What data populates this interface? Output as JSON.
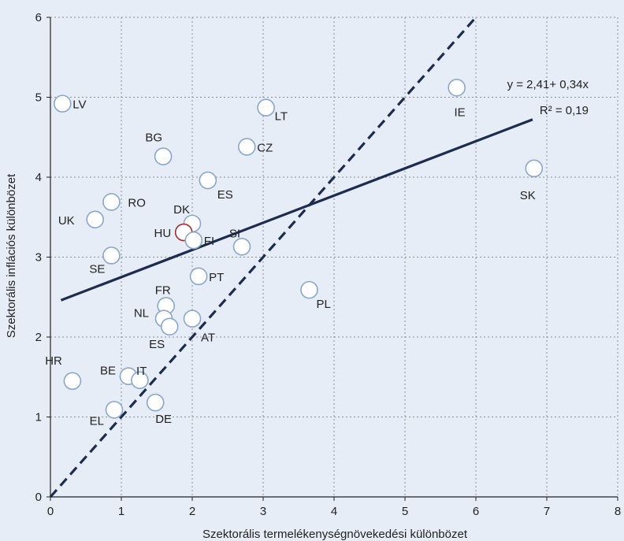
{
  "chart_data": {
    "type": "scatter",
    "xlabel": "Szektorális termelékenységnövekedési különbözet",
    "ylabel": "Szektorális inflációs különbözet",
    "xlim": [
      0,
      8
    ],
    "ylim": [
      0,
      6
    ],
    "xticks": [
      "0",
      "1",
      "2",
      "3",
      "4",
      "5",
      "6",
      "7",
      "8"
    ],
    "yticks": [
      "0",
      "1",
      "2",
      "3",
      "4",
      "5",
      "6"
    ],
    "grid": true,
    "points": [
      {
        "label": "LV",
        "x": 0.17,
        "y": 4.92,
        "highlight": false
      },
      {
        "label": "LT",
        "x": 3.04,
        "y": 4.87,
        "highlight": false
      },
      {
        "label": "IE",
        "x": 5.73,
        "y": 5.12,
        "highlight": false
      },
      {
        "label": "BG",
        "x": 1.59,
        "y": 4.26,
        "highlight": false
      },
      {
        "label": "CZ",
        "x": 2.77,
        "y": 4.38,
        "highlight": false
      },
      {
        "label": "ES",
        "x": 2.22,
        "y": 3.96,
        "highlight": false
      },
      {
        "label": "SK",
        "x": 6.82,
        "y": 4.11,
        "highlight": false
      },
      {
        "label": "RO",
        "x": 0.86,
        "y": 3.69,
        "highlight": false
      },
      {
        "label": "UK",
        "x": 0.63,
        "y": 3.47,
        "highlight": false
      },
      {
        "label": "DK",
        "x": 2.0,
        "y": 3.42,
        "highlight": false
      },
      {
        "label": "HU",
        "x": 1.88,
        "y": 3.31,
        "highlight": true
      },
      {
        "label": "FI",
        "x": 2.02,
        "y": 3.21,
        "highlight": false
      },
      {
        "label": "SI",
        "x": 2.7,
        "y": 3.13,
        "highlight": false
      },
      {
        "label": "SE",
        "x": 0.86,
        "y": 3.02,
        "highlight": false
      },
      {
        "label": "PT",
        "x": 2.09,
        "y": 2.76,
        "highlight": false
      },
      {
        "label": "PL",
        "x": 3.65,
        "y": 2.59,
        "highlight": false
      },
      {
        "label": "FR",
        "x": 1.63,
        "y": 2.39,
        "highlight": false
      },
      {
        "label": "NL",
        "x": 1.6,
        "y": 2.23,
        "highlight": false
      },
      {
        "label": "AT",
        "x": 2.0,
        "y": 2.23,
        "highlight": false
      },
      {
        "label": "ES",
        "x": 1.68,
        "y": 2.13,
        "highlight": false
      },
      {
        "label": "HR",
        "x": 0.31,
        "y": 1.45,
        "highlight": false
      },
      {
        "label": "BE",
        "x": 1.1,
        "y": 1.51,
        "highlight": false
      },
      {
        "label": "IT",
        "x": 1.26,
        "y": 1.46,
        "highlight": false
      },
      {
        "label": "EL",
        "x": 0.9,
        "y": 1.09,
        "highlight": false
      },
      {
        "label": "DE",
        "x": 1.48,
        "y": 1.18,
        "highlight": false
      }
    ],
    "trendline": {
      "intercept": 2.41,
      "slope": 0.34,
      "x_range": [
        0.15,
        6.8
      ]
    },
    "reference_line": {
      "from": [
        0,
        0
      ],
      "to": [
        6,
        6
      ]
    },
    "annotations": {
      "equation": "y = 2,41+ 0,34x",
      "r2": "R² = 0,19"
    },
    "colors": {
      "background": "#e6edf6",
      "grid": "#8e8e8e",
      "line": "#1c2b4f",
      "marker_stroke": "#8aa6cc",
      "marker_fill": "#ffffff",
      "highlight": "#a8262a"
    }
  }
}
